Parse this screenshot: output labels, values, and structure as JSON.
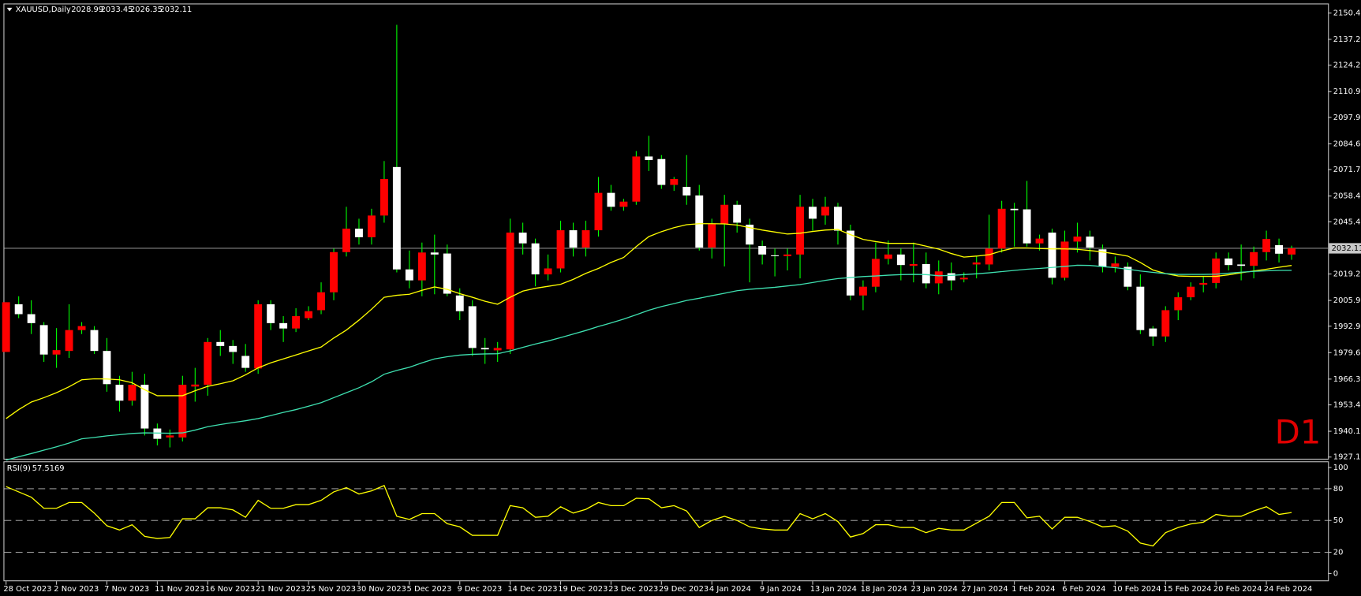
{
  "chart_data": [
    {
      "type": "candlestick",
      "title": "XAUUSD,Daily",
      "annotation": "D1",
      "categories": [
        "28 Oct 2023",
        null,
        null,
        null,
        "2 Nov 2023",
        null,
        null,
        null,
        "7 Nov 2023",
        null,
        null,
        null,
        "11 Nov 2023",
        null,
        null,
        null,
        "16 Nov 2023",
        null,
        null,
        null,
        "21 Nov 2023",
        null,
        null,
        null,
        "25 Nov 2023",
        null,
        null,
        null,
        "30 Nov 2023",
        null,
        null,
        null,
        "5 Dec 2023",
        null,
        null,
        null,
        "9 Dec 2023",
        null,
        null,
        null,
        "14 Dec 2023",
        null,
        null,
        null,
        "19 Dec 2023",
        null,
        null,
        null,
        "23 Dec 2023",
        null,
        null,
        null,
        "29 Dec 2023",
        null,
        null,
        null,
        "4 Jan 2024",
        null,
        null,
        null,
        "9 Jan 2024",
        null,
        null,
        null,
        "13 Jan 2024",
        null,
        null,
        null,
        "18 Jan 2024",
        null,
        null,
        null,
        "23 Jan 2024",
        null,
        null,
        null,
        "27 Jan 2024",
        null,
        null,
        null,
        "1 Feb 2024",
        null,
        null,
        null,
        "6 Feb 2024",
        null,
        null,
        null,
        "10 Feb 2024",
        null,
        null,
        null,
        "15 Feb 2024",
        null,
        null,
        null,
        "20 Feb 2024",
        null,
        null,
        null,
        "24 Feb 2024",
        null,
        null
      ],
      "open": [
        1980,
        2004,
        1999,
        1993.5,
        1978.7,
        1980.5,
        1991,
        1991,
        1980.5,
        1963.5,
        1955.5,
        1963.5,
        1941.5,
        1937,
        1937,
        1962.6,
        1963.5,
        1985,
        1983,
        1978,
        1971.7,
        2004,
        1994.5,
        1991.8,
        1997,
        2001,
        2010,
        2030.2,
        2042,
        2037.7,
        2048.6,
        2073,
        2021.5,
        2016,
        2030,
        2029.5,
        2008.4,
        2003,
        1982,
        1980.8,
        1981.3,
        2040,
        2034.6,
        2019,
        2022,
        2041.2,
        2032.5,
        2041.2,
        2060,
        2053,
        2055.6,
        2078.3,
        2077,
        2064,
        2063,
        2058.7,
        2032.5,
        2044.3,
        2054,
        2044,
        2033.3,
        2028.6,
        2028.2,
        2029,
        2053,
        2048.6,
        2053,
        2041,
        2008.4,
        2012.8,
        2026.8,
        2029,
        2023.3,
        2024.2,
        2014.5,
        2019.6,
        2016.5,
        2024,
        2024,
        2032,
        2052,
        2051.7,
        2034.6,
        2040,
        2017.3,
        2035.5,
        2038,
        2031.6,
        2022.8,
        2022.8,
        2012.8,
        1991.8,
        1987.8,
        2001,
        2007.5,
        2013.8,
        2014.7,
        2027,
        2024,
        2023.3,
        2030.2,
        2033.7,
        2028.99
      ],
      "high": [
        2005,
        2008,
        2006,
        1995,
        1992,
        2004,
        1995,
        1993,
        1987,
        1968,
        1970,
        1969,
        1944,
        1941,
        1968,
        1972,
        1987,
        1991,
        1986,
        1984,
        2006,
        2006,
        1998,
        2002,
        2003,
        2015,
        2032,
        2053,
        2047,
        2052,
        2076,
        2144.5,
        2031,
        2035,
        2039,
        2034,
        2012,
        2006,
        1987,
        1985,
        2047,
        2045,
        2037,
        2029,
        2046,
        2045,
        2046,
        2068,
        2064,
        2057,
        2081,
        2088.7,
        2079,
        2068,
        2079,
        2064,
        2047,
        2059,
        2056,
        2047,
        2036,
        2032,
        2032,
        2059,
        2057,
        2058,
        2055,
        2044,
        2016,
        2035,
        2036,
        2032,
        2035,
        2030,
        2026,
        2025,
        2020,
        2028,
        2049,
        2056,
        2055,
        2066,
        2039,
        2042,
        2041,
        2045,
        2041,
        2034,
        2028,
        2025,
        2019,
        1993,
        2003,
        2010,
        2015,
        2018,
        2030,
        2030,
        2034,
        2033,
        2041,
        2037,
        2033.45
      ],
      "low": [
        1980,
        1997,
        1989,
        1975,
        1972,
        1977,
        1989,
        1979,
        1960,
        1950,
        1953,
        1938,
        1933,
        1932,
        1935,
        1955,
        1958,
        1978,
        1974,
        1970,
        1969,
        1991,
        1985,
        1990,
        1996,
        1999,
        2006,
        2028,
        2034,
        2034,
        2045,
        2020,
        2012,
        2008,
        2009,
        2008,
        1996,
        1978,
        1974,
        1975,
        1979,
        2029,
        2013,
        2016,
        2020,
        2028,
        2028,
        2038,
        2051,
        2051,
        2054,
        2071,
        2062,
        2061,
        2054,
        2031,
        2027,
        2023,
        2040,
        2015,
        2024,
        2018,
        2021,
        2017,
        2041,
        2044,
        2034,
        2006,
        2001,
        2010,
        2024,
        2016,
        2015,
        2012,
        2009,
        2011,
        2015,
        2017,
        2021,
        2030,
        2033,
        2033,
        2031,
        2014,
        2016,
        2030,
        2026,
        2020,
        2020,
        2011,
        1989,
        1983,
        1985,
        1996,
        2006,
        2010,
        2012,
        2021,
        2016,
        2017,
        2026,
        2025,
        2026.35
      ],
      "close": [
        2005,
        1999,
        1994.5,
        1978.7,
        1980.9,
        1991,
        1993,
        1980.5,
        1963.8,
        1955.5,
        1963.5,
        1941.5,
        1936.3,
        1938,
        1963.5,
        1963.6,
        1985,
        1983,
        1980,
        1972,
        2004,
        1994.5,
        1991.8,
        1998,
        2000.5,
        2010,
        2030.2,
        2042,
        2037.7,
        2048.6,
        2067,
        2021.5,
        2016,
        2030,
        2029,
        2009.3,
        2000.5,
        1982,
        1981.3,
        1982,
        2040,
        2034.6,
        2019,
        2022,
        2041.2,
        2032.5,
        2041.2,
        2060,
        2053,
        2055.6,
        2078.3,
        2076.5,
        2064,
        2067,
        2058.7,
        2032.5,
        2044.3,
        2054,
        2045,
        2034,
        2029,
        2028.2,
        2029,
        2053,
        2047,
        2053,
        2041,
        2008.4,
        2012.8,
        2026.8,
        2029,
        2023.7,
        2024.2,
        2014.5,
        2020.5,
        2016,
        2017.3,
        2025,
        2032,
        2052,
        2051.3,
        2034.6,
        2037,
        2017.3,
        2035.5,
        2038,
        2032.5,
        2022.8,
        2024.5,
        2012.8,
        1991,
        1987.8,
        2001,
        2007.5,
        2012.8,
        2014.7,
        2027,
        2023.7,
        2023.3,
        2030.2,
        2036.8,
        2029.4,
        2032.11
      ],
      "up_color": "#ff0000",
      "down_color": "#ffffff",
      "wick_color": "#00ff00",
      "overlays": [
        {
          "color": "#ffff00",
          "values": [
            1946.5,
            1951,
            1954.8,
            1957,
            1959.5,
            1962.5,
            1966,
            1966.5,
            1966.4,
            1966,
            1964.5,
            1961,
            1958,
            1958,
            1958,
            1960.5,
            1962.7,
            1964,
            1965.5,
            1968.5,
            1972,
            1974.5,
            1976.5,
            1978.5,
            1980.5,
            1982.5,
            1987,
            1991,
            1996,
            2001.5,
            2007.5,
            2008.5,
            2009,
            2011,
            2012.7,
            2011.5,
            2009.3,
            2007.5,
            2005.5,
            2004,
            2007.5,
            2010.6,
            2012,
            2013,
            2014,
            2016.5,
            2019.5,
            2022,
            2025,
            2027.5,
            2033,
            2038,
            2040.5,
            2042.5,
            2044,
            2044.5,
            2044.5,
            2044.4,
            2043.8,
            2042.5,
            2041.3,
            2040.3,
            2039.3,
            2039.7,
            2040.6,
            2041.3,
            2041.6,
            2039,
            2036.6,
            2035.5,
            2034.6,
            2034.6,
            2034.6,
            2033.2,
            2031.7,
            2029.5,
            2027.7,
            2028.2,
            2028.9,
            2030.8,
            2032.3,
            2032.3,
            2032,
            2031.8,
            2031.8,
            2031.6,
            2031,
            2030.3,
            2029.3,
            2028.2,
            2025,
            2021.2,
            2019.4,
            2018.2,
            2018,
            2018,
            2018,
            2018.8,
            2019.8,
            2020.7,
            2021.6,
            2022.6,
            2023.5
          ]
        },
        {
          "color": "#3ee0b0",
          "values": [
            1925.6,
            1927.3,
            1928.9,
            1930.6,
            1932.3,
            1934.2,
            1936.3,
            1937,
            1937.8,
            1938.4,
            1939,
            1939.3,
            1939.2,
            1939.1,
            1939.3,
            1940.7,
            1942.4,
            1943.5,
            1944.5,
            1945.4,
            1946.5,
            1948,
            1949.6,
            1951,
            1952.7,
            1954.5,
            1957,
            1959.5,
            1962,
            1965,
            1968.8,
            1970.7,
            1972.3,
            1974.5,
            1976.5,
            1977.6,
            1978.4,
            1978.8,
            1979,
            1979.1,
            1980.5,
            1982.3,
            1984,
            1985.5,
            1987.2,
            1989,
            1990.8,
            1992.8,
            1994.6,
            1996.5,
            1998.7,
            2001,
            2002.8,
            2004.3,
            2005.9,
            2007,
            2008.3,
            2009.5,
            2010.8,
            2011.5,
            2012,
            2012.5,
            2013.2,
            2013.9,
            2014.9,
            2016,
            2016.9,
            2017.4,
            2017.9,
            2018.2,
            2018.6,
            2018.9,
            2019,
            2018.9,
            2018.3,
            2018.5,
            2018.9,
            2019.3,
            2019.8,
            2020.4,
            2021,
            2021.6,
            2022,
            2022.5,
            2023,
            2023.6,
            2023.5,
            2022.9,
            2022.4,
            2021.6,
            2020.7,
            2020,
            2019.4,
            2019,
            2019,
            2019,
            2019.1,
            2019.6,
            2020.1,
            2020.5,
            2020.8,
            2021,
            2021
          ]
        }
      ],
      "ylim": [
        1926.3,
        2154.8
      ],
      "yticks": [
        2150.45,
        {
          "value": 2137.2,
          "label": "2137.20"
        },
        {
          "value": 2124.2,
          "label": "2124.20"
        },
        {
          "value": 2110.9,
          "label": "2110.90"
        },
        2097.95,
        2084.65,
        {
          "value": 2071.7,
          "label": "2071.70"
        },
        {
          "value": 2058.4,
          "label": "2058.40"
        },
        2045.45,
        {
          "value": 2019.2,
          "label": "2019.20"
        },
        {
          "value": 2005.9,
          "label": "2005.90"
        },
        1992.95,
        1979.65,
        1966.35,
        {
          "value": 1953.4,
          "label": "1953.40"
        },
        {
          "value": 1940.1,
          "label": "1940.10"
        },
        1927.15
      ]
    },
    {
      "type": "line",
      "title": "RSI(9)",
      "color": "#ffff00",
      "values": [
        82,
        77,
        72,
        61.5,
        61.5,
        67,
        67,
        57,
        45,
        41,
        46,
        35,
        33,
        34,
        51.6,
        51.6,
        62,
        62,
        60,
        53,
        69,
        61.5,
        61.5,
        65,
        65,
        69,
        77,
        81,
        75,
        78,
        83,
        54,
        51,
        56.5,
        56.5,
        47,
        44,
        36,
        36,
        36,
        64,
        62,
        53,
        54,
        63,
        57,
        60.5,
        67,
        64,
        64,
        71,
        70.5,
        62,
        64,
        59,
        43.4,
        50,
        54,
        50,
        44,
        42,
        41,
        41,
        56.5,
        51.6,
        56.5,
        49,
        34.4,
        37.7,
        46,
        46,
        43.4,
        43.4,
        38.5,
        42.6,
        41,
        41,
        47.5,
        54,
        67,
        67,
        52.5,
        54,
        42,
        53,
        53,
        49,
        44,
        45,
        40,
        28.7,
        26,
        38.5,
        43.4,
        46.7,
        48.4,
        55.7,
        54,
        54,
        59,
        63,
        55.7,
        57.5169
      ],
      "ylim": [
        -6.5,
        105
      ],
      "yticks": [
        100,
        80,
        50,
        20,
        0
      ],
      "levels": [
        80,
        50,
        20
      ]
    }
  ]
}
